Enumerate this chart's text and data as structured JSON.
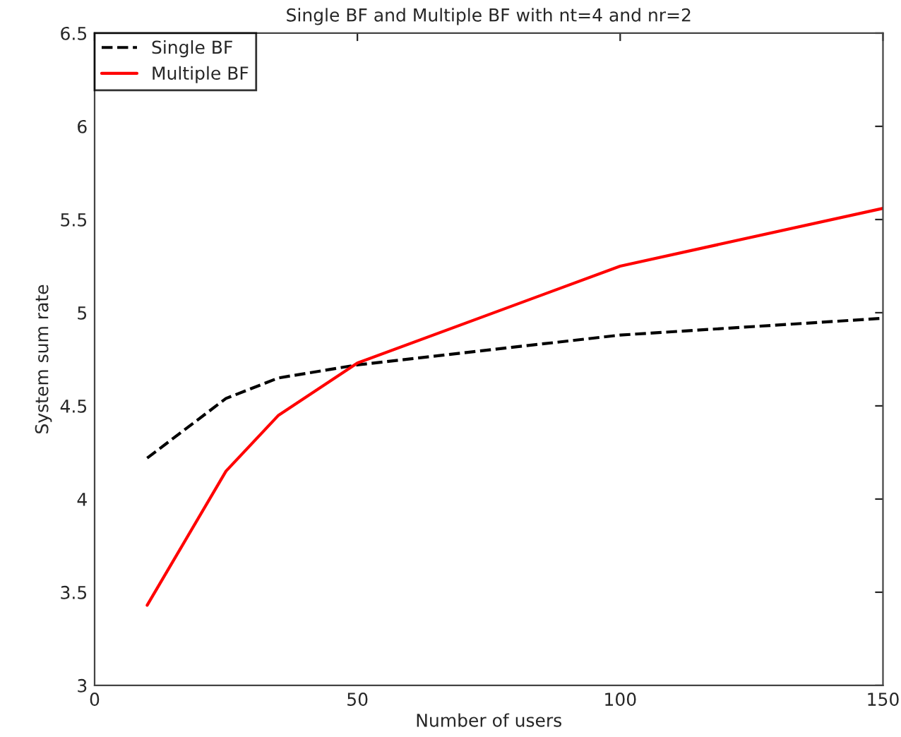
{
  "chart_data": {
    "type": "line",
    "title": "Single BF and Multiple BF with nt=4 and nr=2",
    "xlabel": "Number of users",
    "ylabel": "System sum rate",
    "x": [
      10,
      25,
      35,
      50,
      100,
      150
    ],
    "series": [
      {
        "name": "Single BF",
        "color": "#000000",
        "line_style": "dashed",
        "values": [
          4.22,
          4.54,
          4.65,
          4.72,
          4.88,
          4.97
        ]
      },
      {
        "name": "Multiple BF",
        "color": "#ff0000",
        "line_style": "solid",
        "values": [
          3.43,
          4.15,
          4.45,
          4.73,
          5.25,
          5.56
        ]
      }
    ],
    "xlim": [
      0,
      150
    ],
    "xticks": [
      0,
      50,
      100,
      150
    ],
    "ylim": [
      3,
      6.5
    ],
    "yticks": [
      3,
      3.5,
      4,
      4.5,
      5,
      5.5,
      6,
      6.5
    ],
    "legend": "top left",
    "grid": false
  }
}
